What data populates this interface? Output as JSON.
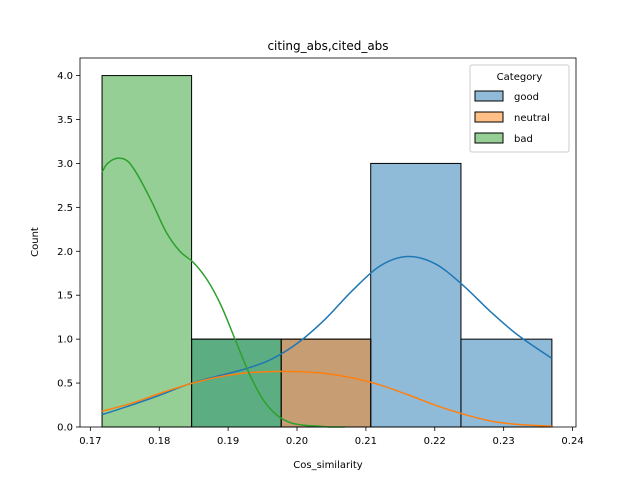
{
  "chart_data": {
    "type": "histogram",
    "title": "citing_abs,cited_abs",
    "xlabel": "Cos_similarity",
    "ylabel": "Count",
    "xlim": [
      0.1685,
      0.2405
    ],
    "ylim": [
      0,
      4.2
    ],
    "xticks": [
      0.17,
      0.18,
      0.19,
      0.2,
      0.21,
      0.22,
      0.23,
      0.24
    ],
    "xtick_labels": [
      "0.17",
      "0.18",
      "0.19",
      "0.20",
      "0.21",
      "0.22",
      "0.23",
      "0.24"
    ],
    "yticks": [
      0,
      0.5,
      1.0,
      1.5,
      2.0,
      2.5,
      3.0,
      3.5,
      4.0
    ],
    "ytick_labels": [
      "0.0",
      "0.5",
      "1.0",
      "1.5",
      "2.0",
      "2.5",
      "3.0",
      "3.5",
      "4.0"
    ],
    "bin_edges": [
      0.1717,
      0.1847,
      0.1977,
      0.2107,
      0.2238,
      0.237
    ],
    "legend": {
      "title": "Category",
      "position": "top-right"
    },
    "grid": false,
    "series": [
      {
        "name": "good",
        "color": "#1f77b4",
        "counts": [
          0,
          1,
          1,
          3,
          1
        ],
        "kde": {
          "x": [
            0.1717,
            0.176,
            0.18,
            0.184,
            0.188,
            0.192,
            0.196,
            0.2,
            0.204,
            0.208,
            0.212,
            0.216,
            0.22,
            0.224,
            0.228,
            0.232,
            0.237
          ],
          "y": [
            0.14,
            0.25,
            0.36,
            0.48,
            0.57,
            0.65,
            0.76,
            0.95,
            1.22,
            1.55,
            1.83,
            1.94,
            1.86,
            1.62,
            1.32,
            1.05,
            0.78
          ]
        }
      },
      {
        "name": "neutral",
        "color": "#ff7f0e",
        "counts": [
          0,
          0,
          1,
          0,
          0
        ],
        "kde": {
          "x": [
            0.1717,
            0.176,
            0.18,
            0.184,
            0.188,
            0.192,
            0.196,
            0.2,
            0.204,
            0.208,
            0.212,
            0.216,
            0.22,
            0.224,
            0.228,
            0.232,
            0.237
          ],
          "y": [
            0.18,
            0.27,
            0.38,
            0.48,
            0.56,
            0.61,
            0.63,
            0.63,
            0.61,
            0.56,
            0.48,
            0.37,
            0.25,
            0.15,
            0.07,
            0.03,
            0.01
          ]
        }
      },
      {
        "name": "bad",
        "color": "#2ca02c",
        "counts": [
          4,
          1,
          0,
          0,
          0
        ],
        "kde": {
          "x": [
            0.1717,
            0.1725,
            0.174,
            0.1755,
            0.177,
            0.179,
            0.181,
            0.183,
            0.185,
            0.187,
            0.189,
            0.191,
            0.193,
            0.195,
            0.197,
            0.199,
            0.201,
            0.203,
            0.205,
            0.207
          ],
          "y": [
            2.9,
            3.0,
            3.06,
            3.02,
            2.85,
            2.55,
            2.22,
            2.0,
            1.87,
            1.67,
            1.38,
            1.0,
            0.62,
            0.32,
            0.14,
            0.05,
            0.02,
            0.01,
            0.0,
            0.0
          ]
        }
      }
    ]
  }
}
